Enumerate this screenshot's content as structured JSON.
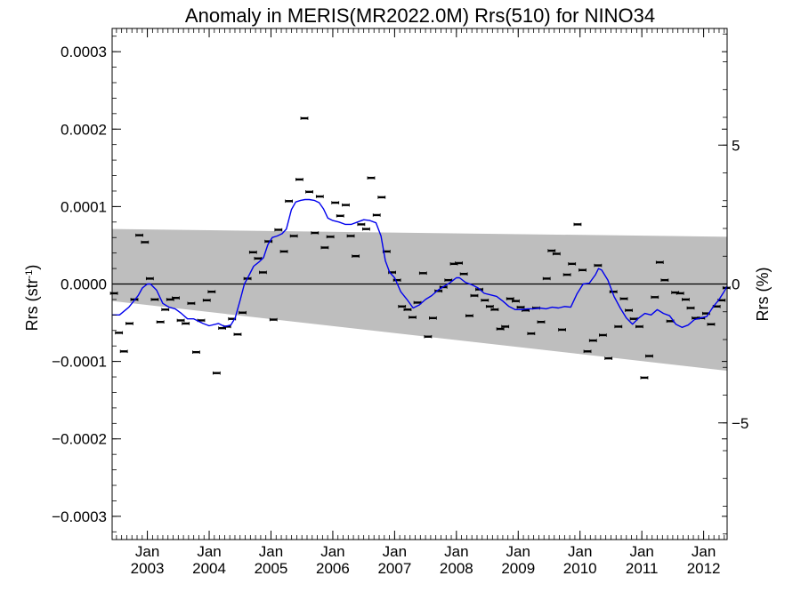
{
  "chart_data": {
    "type": "line",
    "title": "Anomaly in MERIS(MR2022.0M) Rrs(510) for NINO34",
    "ylabel": "Rrs (str",
    "ylabel_sup": "-1",
    "ylabel_end": ")",
    "y2label": "Rrs (%)",
    "x_range": [
      2002.43,
      2012.38
    ],
    "ylim": [
      -0.00033,
      0.00033
    ],
    "y2lim": [
      -9.2,
      9.2
    ],
    "yticks": [
      {
        "value": 0.0003,
        "label": "0.0003"
      },
      {
        "value": 0.0002,
        "label": "0.0002"
      },
      {
        "value": 0.0001,
        "label": "0.0001"
      },
      {
        "value": 0.0,
        "label": "0.0000"
      },
      {
        "value": -0.0001,
        "label": "−0.0001"
      },
      {
        "value": -0.0002,
        "label": "−0.0002"
      },
      {
        "value": -0.0003,
        "label": "−0.0003"
      }
    ],
    "y2ticks": [
      {
        "value": 5,
        "label": "5"
      },
      {
        "value": 0,
        "label": "0"
      },
      {
        "value": -5,
        "label": "−5"
      }
    ],
    "xticks": [
      {
        "value": 2003.0,
        "label1": "Jan",
        "label2": "2003"
      },
      {
        "value": 2004.0,
        "label1": "Jan",
        "label2": "2004"
      },
      {
        "value": 2005.0,
        "label1": "Jan",
        "label2": "2005"
      },
      {
        "value": 2006.0,
        "label1": "Jan",
        "label2": "2006"
      },
      {
        "value": 2007.0,
        "label1": "Jan",
        "label2": "2007"
      },
      {
        "value": 2008.0,
        "label1": "Jan",
        "label2": "2008"
      },
      {
        "value": 2009.0,
        "label1": "Jan",
        "label2": "2009"
      },
      {
        "value": 2010.0,
        "label1": "Jan",
        "label2": "2010"
      },
      {
        "value": 2011.0,
        "label1": "Jan",
        "label2": "2011"
      },
      {
        "value": 2012.0,
        "label1": "Jan",
        "label2": "2012"
      }
    ],
    "band": {
      "x": [
        2002.43,
        2012.38
      ],
      "upper": [
        7.1e-05,
        6.1e-05
      ],
      "lower": [
        -2.2e-05,
        -0.000112
      ],
      "color": "#bebebe"
    },
    "colors": {
      "line": "#0000ee",
      "points": "#000000",
      "zero": "#000000"
    },
    "monthly_points": {
      "x": [
        2002.46,
        2002.54,
        2002.62,
        2002.71,
        2002.79,
        2002.87,
        2002.96,
        2003.04,
        2003.12,
        2003.21,
        2003.29,
        2003.37,
        2003.46,
        2003.54,
        2003.62,
        2003.71,
        2003.79,
        2003.87,
        2003.96,
        2004.04,
        2004.12,
        2004.21,
        2004.29,
        2004.37,
        2004.46,
        2004.54,
        2004.62,
        2004.71,
        2004.79,
        2004.87,
        2004.96,
        2005.04,
        2005.12,
        2005.21,
        2005.29,
        2005.37,
        2005.46,
        2005.54,
        2005.62,
        2005.71,
        2005.79,
        2005.87,
        2005.96,
        2006.04,
        2006.12,
        2006.21,
        2006.29,
        2006.37,
        2006.46,
        2006.54,
        2006.62,
        2006.71,
        2006.79,
        2006.87,
        2006.96,
        2007.04,
        2007.12,
        2007.21,
        2007.29,
        2007.37,
        2007.46,
        2007.54,
        2007.62,
        2007.71,
        2007.79,
        2007.87,
        2007.96,
        2008.04,
        2008.12,
        2008.21,
        2008.29,
        2008.37,
        2008.46,
        2008.54,
        2008.62,
        2008.71,
        2008.79,
        2008.87,
        2008.96,
        2009.04,
        2009.12,
        2009.21,
        2009.29,
        2009.37,
        2009.46,
        2009.54,
        2009.62,
        2009.71,
        2009.79,
        2009.87,
        2009.96,
        2010.04,
        2010.12,
        2010.21,
        2010.29,
        2010.37,
        2010.46,
        2010.54,
        2010.62,
        2010.71,
        2010.79,
        2010.87,
        2010.96,
        2011.04,
        2011.12,
        2011.21,
        2011.29,
        2011.37,
        2011.46,
        2011.54,
        2011.62,
        2011.71,
        2011.79,
        2011.87,
        2011.96,
        2012.04,
        2012.12,
        2012.21,
        2012.29,
        2012.37
      ],
      "y": [
        -1.2e-05,
        -6.3e-05,
        -8.7e-05,
        -5.1e-05,
        -2e-05,
        6.3e-05,
        5.4e-05,
        7e-06,
        -2e-05,
        -4.9e-05,
        -3.3e-05,
        -2e-05,
        -1.8e-05,
        -4.7e-05,
        -5.1e-05,
        -2.5e-05,
        -8.8e-05,
        -4.7e-05,
        -2.1e-05,
        -1e-05,
        -0.000115,
        -5.7e-05,
        -5.5e-05,
        -4.5e-05,
        -6.5e-05,
        -3.7e-05,
        7e-06,
        4.1e-05,
        3.3e-05,
        1.5e-05,
        5.5e-05,
        -4.6e-05,
        7e-05,
        4.2e-05,
        0.000107,
        6.2e-05,
        0.000135,
        0.000214,
        0.000119,
        6.6e-05,
        0.000113,
        4.7e-05,
        6.1e-05,
        0.000105,
        8.8e-05,
        0.000102,
        6.2e-05,
        3.6e-05,
        7.7e-05,
        7.1e-05,
        0.000137,
        8.9e-05,
        0.000112,
        4.2e-05,
        1.5e-05,
        5e-06,
        -2.9e-05,
        -3.3e-05,
        -4.3e-05,
        -2.4e-05,
        1.4e-05,
        -6.8e-05,
        -4.4e-05,
        -9e-06,
        -4e-06,
        5e-06,
        2.6e-05,
        2.7e-05,
        1.3e-05,
        -4.1e-05,
        -1.5e-05,
        -7e-06,
        -2.1e-05,
        -2.9e-05,
        -3.3e-05,
        -5.8e-05,
        -5.5e-05,
        -1.9e-05,
        -2.2e-05,
        -3e-05,
        -3.4e-05,
        -6.4e-05,
        -3.1e-05,
        -4.9e-05,
        7e-06,
        4.3e-05,
        3.9e-05,
        -5.9e-05,
        1.2e-05,
        2.6e-05,
        7.7e-05,
        1.8e-05,
        -8.7e-05,
        -7.3e-05,
        2.4e-05,
        -6.6e-05,
        -9.6e-05,
        -1e-05,
        -5.5e-05,
        -1.9e-05,
        -3.4e-05,
        -4.5e-05,
        -5.5e-05,
        -0.000121,
        -9.3e-05,
        -1.7e-05,
        2.8e-05,
        5e-06,
        -4.8e-05,
        -1.1e-05,
        -1.2e-05,
        -2e-05,
        -3.1e-05,
        -4.4e-05,
        -4.4e-05,
        -3.8e-05,
        -5.2e-05,
        -2.9e-05,
        -2.1e-05,
        -5e-06
      ]
    },
    "smoothed_line": {
      "x": [
        2002.43,
        2002.55,
        2002.7,
        2002.85,
        2002.92,
        2003.0,
        2003.05,
        2003.15,
        2003.25,
        2003.35,
        2003.45,
        2003.55,
        2003.65,
        2003.75,
        2003.9,
        2004.0,
        2004.15,
        2004.25,
        2004.35,
        2004.42,
        2004.5,
        2004.57,
        2004.65,
        2004.72,
        2004.8,
        2004.88,
        2004.95,
        2005.02,
        2005.1,
        2005.18,
        2005.25,
        2005.33,
        2005.4,
        2005.48,
        2005.55,
        2005.62,
        2005.7,
        2005.78,
        2005.85,
        2005.92,
        2006.0,
        2006.1,
        2006.2,
        2006.3,
        2006.4,
        2006.5,
        2006.6,
        2006.7,
        2006.78,
        2006.85,
        2006.92,
        2007.0,
        2007.1,
        2007.2,
        2007.3,
        2007.4,
        2007.5,
        2007.6,
        2007.7,
        2007.8,
        2007.9,
        2008.0,
        2008.05,
        2008.15,
        2008.25,
        2008.35,
        2008.45,
        2008.55,
        2008.65,
        2008.75,
        2008.85,
        2008.95,
        2009.05,
        2009.15,
        2009.25,
        2009.35,
        2009.45,
        2009.55,
        2009.65,
        2009.75,
        2009.85,
        2009.95,
        2010.05,
        2010.15,
        2010.25,
        2010.3,
        2010.35,
        2010.45,
        2010.55,
        2010.65,
        2010.75,
        2010.85,
        2010.95,
        2011.05,
        2011.15,
        2011.25,
        2011.35,
        2011.45,
        2011.55,
        2011.65,
        2011.75,
        2011.85,
        2011.95,
        2012.05,
        2012.15,
        2012.25,
        2012.33,
        2012.38
      ],
      "y": [
        -4e-05,
        -4e-05,
        -3e-05,
        -1.5e-05,
        -5e-06,
        0.0,
        0.0,
        -8e-06,
        -2.5e-05,
        -3e-05,
        -3.2e-05,
        -3.8e-05,
        -4.5e-05,
        -4.5e-05,
        -5.1e-05,
        -5.4e-05,
        -5.1e-05,
        -5.5e-05,
        -5.3e-05,
        -4.4e-05,
        -2.1e-05,
        0.0,
        1.2e-05,
        2.3e-05,
        2.8e-05,
        3.4e-05,
        5.1e-05,
        6e-05,
        6.2e-05,
        6.5e-05,
        7.1e-05,
        9.6e-05,
        0.000106,
        0.000108,
        0.000109,
        0.000109,
        0.000108,
        0.000105,
        9.7e-05,
        8.5e-05,
        8.2e-05,
        8e-05,
        7.7e-05,
        7.7e-05,
        8e-05,
        8.3e-05,
        8.2e-05,
        7.9e-05,
        6.2e-05,
        3e-05,
        1.5e-05,
        8e-06,
        -1e-05,
        -2e-05,
        -3.1e-05,
        -2.7e-05,
        -2e-05,
        -1.5e-05,
        -8e-06,
        -3e-06,
        2e-06,
        8e-06,
        8e-06,
        2e-06,
        -1e-06,
        -5e-06,
        -1.2e-05,
        -1.4e-05,
        -1.6e-05,
        -2.2e-05,
        -2.9e-05,
        -3.3e-05,
        -3.3e-05,
        -3.2e-05,
        -3.2e-05,
        -3.1e-05,
        -3.2e-05,
        -3e-05,
        -3.1e-05,
        -2.9e-05,
        -3e-05,
        -1.3e-05,
        0.0,
        1e-06,
        1.2e-05,
        2e-05,
        1.8e-05,
        5e-06,
        -1.6e-05,
        -3.1e-05,
        -4.4e-05,
        -5.2e-05,
        -4.4e-05,
        -3.8e-05,
        -4e-05,
        -3.3e-05,
        -3.8e-05,
        -4.1e-05,
        -5.2e-05,
        -5.6e-05,
        -5.3e-05,
        -4.6e-05,
        -4.4e-05,
        -4.2e-05,
        -3e-05,
        -2e-05,
        -1e-05,
        -3e-06
      ]
    }
  }
}
